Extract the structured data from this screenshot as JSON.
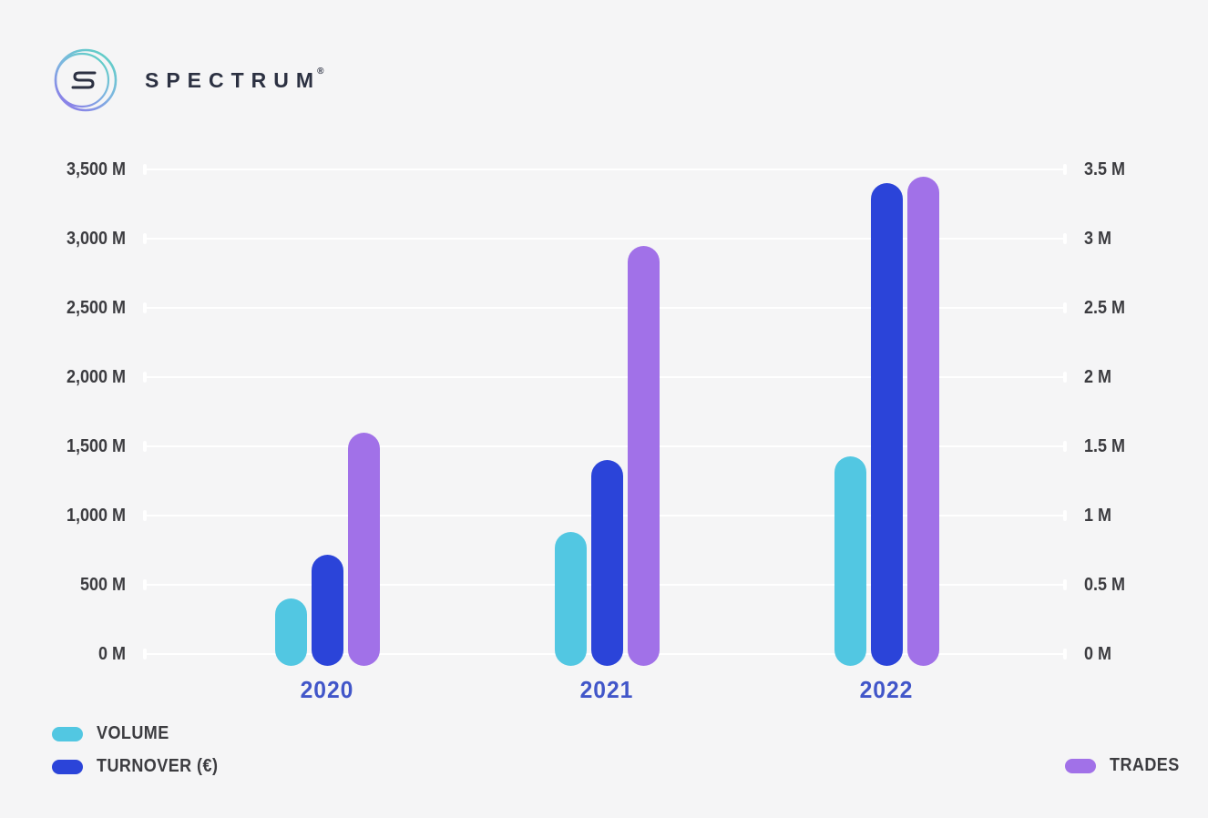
{
  "logo": {
    "brand": "SPECTRUM",
    "registered": "®",
    "monogram": "S",
    "ring_color_start": "#5ed0c5",
    "ring_color_end": "#8c76e9",
    "text_color": "#2c3142"
  },
  "colors": {
    "background": "#f5f5f6",
    "gridline": "#ffffff",
    "axis_text": "#3c3c40",
    "year_text": "#4156c9"
  },
  "chart_data": {
    "type": "bar",
    "title": "",
    "categories": [
      "2020",
      "2021",
      "2022"
    ],
    "series": [
      {
        "name": "VOLUME",
        "axis": "left",
        "color": "#52c7e2",
        "values": [
          400,
          880,
          1430
        ]
      },
      {
        "name": "TURNOVER (€)",
        "axis": "left",
        "color": "#2b44d9",
        "values": [
          720,
          1400,
          3400
        ]
      },
      {
        "name": "TRADES",
        "axis": "right",
        "color": "#a171e8",
        "values": [
          1.6,
          2.95,
          3.45
        ]
      }
    ],
    "left_axis": {
      "ticks": [
        "0 M",
        "500 M",
        "1,000 M",
        "1,500 M",
        "2,000 M",
        "2,500 M",
        "3,000 M",
        "3,500 M"
      ],
      "min": 0,
      "max": 3500,
      "step": 500
    },
    "right_axis": {
      "ticks": [
        "0 M",
        "0.5 M",
        "1 M",
        "1.5 M",
        "2 M",
        "2.5 M",
        "3 M",
        "3.5 M"
      ],
      "min": 0,
      "max": 3.5,
      "step": 0.5
    },
    "grid": true,
    "legend_position": "bottom"
  },
  "legend": {
    "left_items": [
      {
        "label": "VOLUME",
        "color": "#52c7e2"
      },
      {
        "label": "TURNOVER (€)",
        "color": "#2b44d9"
      }
    ],
    "right_items": [
      {
        "label": "TRADES",
        "color": "#a171e8"
      }
    ]
  }
}
